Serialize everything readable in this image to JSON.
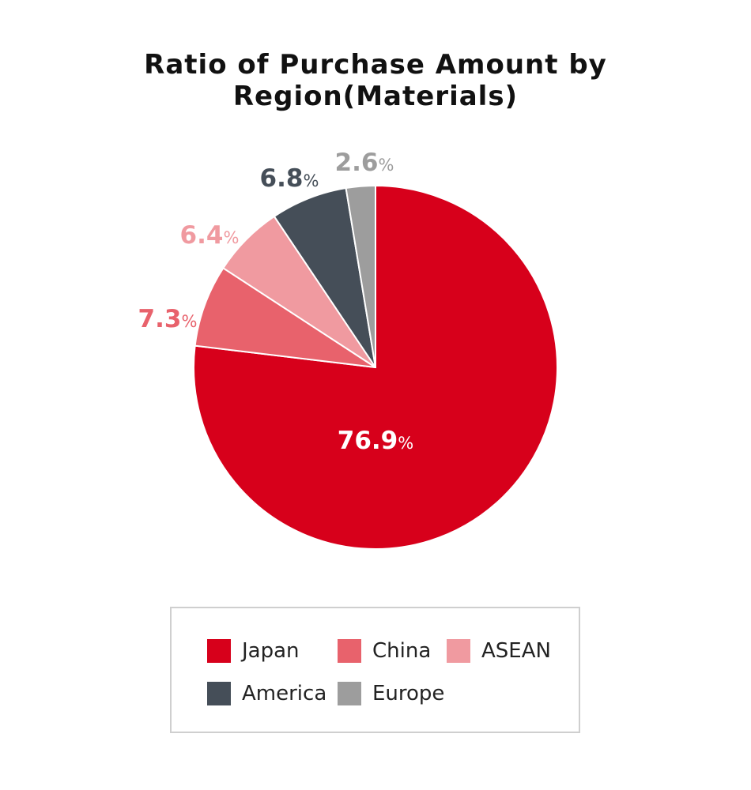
{
  "chart_data": {
    "type": "pie",
    "title": "Ratio of Purchase Amount by Region(Materials)",
    "slices": [
      {
        "name": "Japan",
        "value": 76.9,
        "label": "76.9",
        "color": "#d7001b",
        "label_color": "#ffffff"
      },
      {
        "name": "China",
        "value": 7.3,
        "label": "7.3",
        "color": "#e8626c",
        "label_color": "#e8626c"
      },
      {
        "name": "ASEAN",
        "value": 6.4,
        "label": "6.4",
        "color": "#f09aa0",
        "label_color": "#f09aa0"
      },
      {
        "name": "America",
        "value": 6.8,
        "label": "6.8",
        "color": "#454e58",
        "label_color": "#454e58"
      },
      {
        "name": "Europe",
        "value": 2.6,
        "label": "2.6",
        "color": "#9d9d9d",
        "label_color": "#9d9d9d"
      }
    ],
    "unit": "%",
    "legend_placement": "bottom",
    "legend": [
      "Japan",
      "China",
      "ASEAN",
      "America",
      "Europe"
    ]
  }
}
